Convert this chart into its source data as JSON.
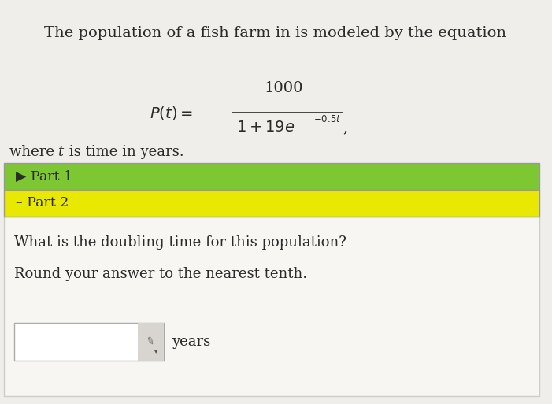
{
  "background_color": "#e0e0e0",
  "main_bg": "#f0eeeb",
  "title_text": "The population of a fish farm in is modeled by the equation",
  "title_fontsize": 14,
  "part1_text": "▶ Part 1",
  "part1_bg": "#7dc832",
  "part2_text": "– Part 2",
  "part2_bg": "#e8e800",
  "question_text": "What is the doubling time for this population?",
  "round_text": "Round your answer to the nearest tenth.",
  "years_text": "years",
  "text_color": "#2a2a2a",
  "font_size_body": 13,
  "font_size_parts": 12.5,
  "content_bg": "#f5f4f1",
  "white_panel_bg": "#f7f6f3"
}
